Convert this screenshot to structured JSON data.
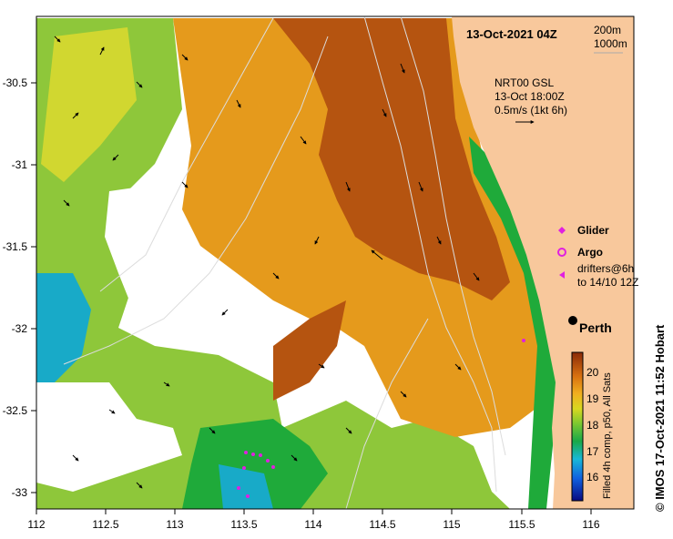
{
  "map": {
    "title": "13-Oct-2021 04Z",
    "depth_contours": [
      "200m",
      "1000m"
    ],
    "current_info": [
      "NRT00 GSL",
      "13-Oct 18:00Z",
      "0.5m/s (1kt 6h)"
    ],
    "lon_ticks": [
      "112",
      "112.5",
      "113",
      "113.5",
      "114",
      "114.5",
      "115",
      "115.5",
      "116"
    ],
    "lat_ticks": [
      "-30.5",
      "-31",
      "-31.5",
      "-32",
      "-32.5",
      "-33"
    ],
    "legend": {
      "glider": "Glider",
      "argo": "Argo",
      "drifters_line1": "drifters@6h",
      "drifters_line2": "to 14/10 12Z"
    },
    "city": "Perth",
    "colorbar": {
      "ticks": [
        "20",
        "19",
        "18",
        "17",
        "16"
      ],
      "label": "Filled 4h comp, p50, All Sats"
    },
    "credit": "© IMOS 17-Oct-2021 11:52 Hobart",
    "colors": {
      "land": "#f8c89c",
      "warm": "#b55410",
      "mid": "#e59a1c",
      "cool": "#8ec73a",
      "green": "#1faa3a",
      "cyan": "#18aac8",
      "marker": "#e020e0"
    }
  }
}
